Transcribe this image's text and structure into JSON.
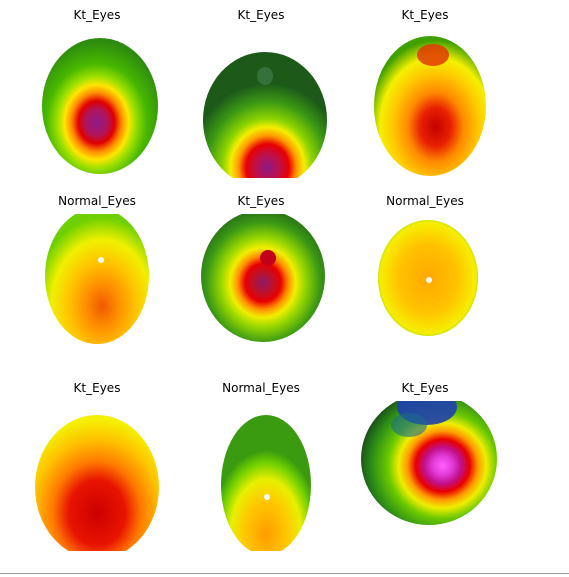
{
  "figure": {
    "panels": [
      {
        "title": "Kt_Eyes"
      },
      {
        "title": "Kt_Eyes"
      },
      {
        "title": "Kt_Eyes"
      },
      {
        "title": "Normal_Eyes"
      },
      {
        "title": "Kt_Eyes"
      },
      {
        "title": "Normal_Eyes"
      },
      {
        "title": "Kt_Eyes"
      },
      {
        "title": "Normal_Eyes"
      },
      {
        "title": "Kt_Eyes"
      }
    ]
  }
}
